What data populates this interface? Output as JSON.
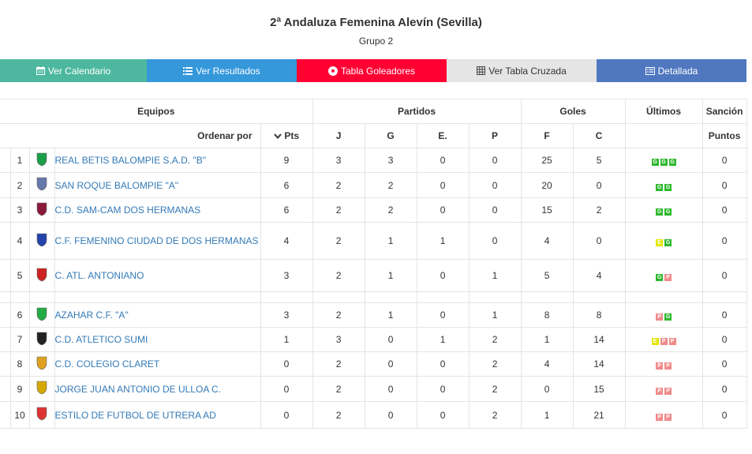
{
  "header": {
    "title": "2ª Andaluza Femenina Alevín (Sevilla)",
    "subtitle": "Grupo 2"
  },
  "nav": [
    {
      "label": "Ver Calendario",
      "icon": "calendar-icon",
      "color": "#4db89f"
    },
    {
      "label": "Ver Resultados",
      "icon": "list-icon",
      "color": "#3498db"
    },
    {
      "label": "Tabla Goleadores",
      "icon": "soccer-ball-icon",
      "color": "#ff0033"
    },
    {
      "label": "Ver Tabla Cruzada",
      "icon": "grid-icon",
      "color": "#e5e5e5"
    },
    {
      "label": "Detallada",
      "icon": "list-alt-icon",
      "color": "#5078c0"
    }
  ],
  "table": {
    "groups": {
      "equipos": "Equipos",
      "partidos": "Partidos",
      "goles": "Goles",
      "ultimos": "Últimos",
      "sancion": "Sanción"
    },
    "sort_label": "Ordenar por",
    "cols": {
      "pts": "Pts",
      "j": "J",
      "g": "G",
      "e": "E.",
      "p": "P",
      "f": "F",
      "c": "C",
      "puntos": "Puntos"
    },
    "rows": [
      {
        "pos": "1",
        "name": "REAL BETIS BALOMPIE S.A.D. \"B\"",
        "pts": "9",
        "j": "3",
        "g": "3",
        "e": "0",
        "p": "0",
        "f": "25",
        "c": "5",
        "last": [
          "G",
          "G",
          "G"
        ],
        "sancion": "0",
        "crest_color": "#1a9e4a"
      },
      {
        "pos": "2",
        "name": "SAN ROQUE BALOMPIE \"A\"",
        "pts": "6",
        "j": "2",
        "g": "2",
        "e": "0",
        "p": "0",
        "f": "20",
        "c": "0",
        "last": [
          "G",
          "G"
        ],
        "sancion": "0",
        "crest_color": "#6677aa"
      },
      {
        "pos": "3",
        "name": "C.D. SAM-CAM DOS HERMANAS",
        "pts": "6",
        "j": "2",
        "g": "2",
        "e": "0",
        "p": "0",
        "f": "15",
        "c": "2",
        "last": [
          "G",
          "G"
        ],
        "sancion": "0",
        "crest_color": "#8a1a3a"
      },
      {
        "pos": "4",
        "name": "C.F. FEMENINO CIUDAD DE DOS HERMANAS",
        "pts": "4",
        "j": "2",
        "g": "1",
        "e": "1",
        "p": "0",
        "f": "4",
        "c": "0",
        "last": [
          "E",
          "G"
        ],
        "sancion": "0",
        "crest_color": "#2244aa"
      },
      {
        "pos": "5",
        "name": "C. ATL. ANTONIANO",
        "pts": "3",
        "j": "2",
        "g": "1",
        "e": "0",
        "p": "1",
        "f": "5",
        "c": "4",
        "last": [
          "G",
          "P"
        ],
        "sancion": "0",
        "crest_color": "#cc2222"
      },
      {
        "pos": "6",
        "name": "AZAHAR C.F. \"A\"",
        "pts": "3",
        "j": "2",
        "g": "1",
        "e": "0",
        "p": "1",
        "f": "8",
        "c": "8",
        "last": [
          "P",
          "G"
        ],
        "sancion": "0",
        "crest_color": "#22aa44"
      },
      {
        "pos": "7",
        "name": "C.D. ATLETICO SUMI",
        "pts": "1",
        "j": "3",
        "g": "0",
        "e": "1",
        "p": "2",
        "f": "1",
        "c": "14",
        "last": [
          "E",
          "P",
          "P"
        ],
        "sancion": "0",
        "crest_color": "#222222"
      },
      {
        "pos": "8",
        "name": "C.D. COLEGIO CLARET",
        "pts": "0",
        "j": "2",
        "g": "0",
        "e": "0",
        "p": "2",
        "f": "4",
        "c": "14",
        "last": [
          "P",
          "P"
        ],
        "sancion": "0",
        "crest_color": "#e0a020"
      },
      {
        "pos": "9",
        "name": "JORGE JUAN ANTONIO DE ULLOA C.",
        "pts": "0",
        "j": "2",
        "g": "0",
        "e": "0",
        "p": "2",
        "f": "0",
        "c": "15",
        "last": [
          "P",
          "P"
        ],
        "sancion": "0",
        "crest_color": "#d4a800"
      },
      {
        "pos": "10",
        "name": "ESTILO DE FUTBOL DE UTRERA AD",
        "pts": "0",
        "j": "2",
        "g": "0",
        "e": "0",
        "p": "2",
        "f": "1",
        "c": "21",
        "last": [
          "P",
          "P"
        ],
        "sancion": "0",
        "crest_color": "#dd3333"
      }
    ]
  }
}
